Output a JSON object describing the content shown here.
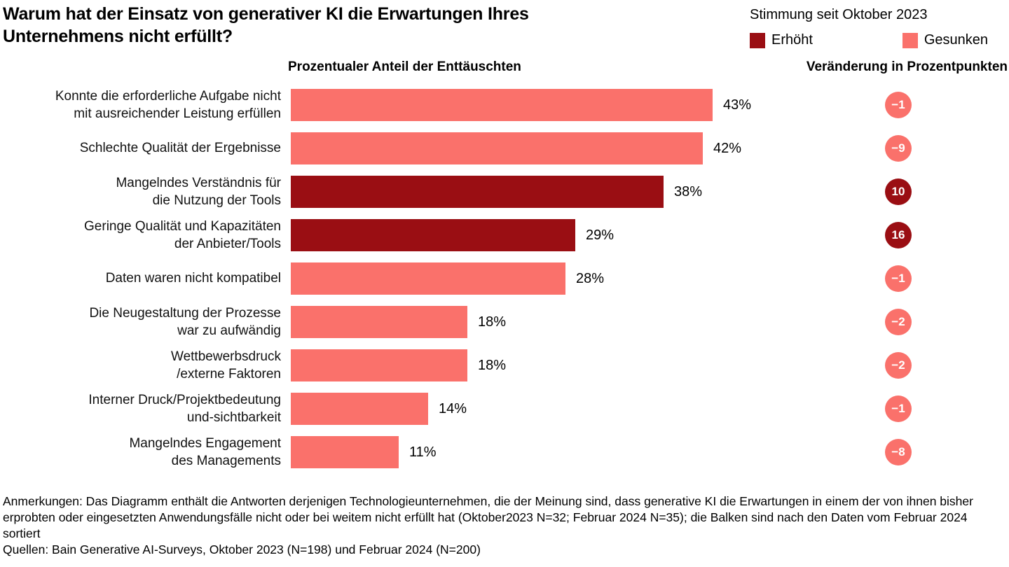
{
  "title": "Warum hat der Einsatz von generativer KI die Erwartungen Ihres Unternehmens nicht erfüllt?",
  "colors": {
    "erhoeht": "#9a0e13",
    "gesunken": "#fa716b"
  },
  "legend": {
    "title": "Stimmung seit Oktober 2023",
    "items": [
      {
        "label": "Erhöht",
        "sentiment": "erhoeht"
      },
      {
        "label": "Gesunken",
        "sentiment": "gesunken"
      }
    ]
  },
  "chart_data": {
    "type": "bar",
    "orientation": "horizontal",
    "value_axis_header": "Prozentualer Anteil der Enttäuschten",
    "change_column_header": "Veränderung in Prozentpunkten",
    "unit": "percent",
    "xlim": [
      0,
      45
    ],
    "categories": [
      "Konnte die erforderliche Aufgabe nicht mit ausreichender Leistung erfüllen",
      "Schlechte Qualität der Ergebnisse",
      "Mangelndes Verständnis für die Nutzung der Tools",
      "Geringe Qualität und Kapazitäten der Anbieter/Tools",
      "Daten waren nicht kompatibel",
      "Die Neugestaltung der Prozesse war zu aufwändig",
      "Wettbewerbsdruck /externe Faktoren",
      "Interner Druck/Projektbedeutung und-sichtbarkeit",
      "Mangelndes Engagement des Managements"
    ],
    "rows": [
      {
        "label_lines": [
          "Konnte die erforderliche Aufgabe nicht",
          "mit ausreichender Leistung erfüllen"
        ],
        "value": 43,
        "value_label": "43%",
        "sentiment": "gesunken",
        "change": "−1"
      },
      {
        "label_lines": [
          "Schlechte Qualität der Ergebnisse"
        ],
        "value": 42,
        "value_label": "42%",
        "sentiment": "gesunken",
        "change": "−9"
      },
      {
        "label_lines": [
          "Mangelndes Verständnis für",
          "die Nutzung der Tools"
        ],
        "value": 38,
        "value_label": "38%",
        "sentiment": "erhoeht",
        "change": "10"
      },
      {
        "label_lines": [
          "Geringe Qualität und Kapazitäten",
          "der Anbieter/Tools"
        ],
        "value": 29,
        "value_label": "29%",
        "sentiment": "erhoeht",
        "change": "16"
      },
      {
        "label_lines": [
          "Daten waren nicht kompatibel"
        ],
        "value": 28,
        "value_label": "28%",
        "sentiment": "gesunken",
        "change": "−1"
      },
      {
        "label_lines": [
          "Die Neugestaltung der Prozesse",
          "war zu aufwändig"
        ],
        "value": 18,
        "value_label": "18%",
        "sentiment": "gesunken",
        "change": "−2"
      },
      {
        "label_lines": [
          "Wettbewerbsdruck",
          "/externe Faktoren"
        ],
        "value": 18,
        "value_label": "18%",
        "sentiment": "gesunken",
        "change": "−2"
      },
      {
        "label_lines": [
          "Interner Druck/Projektbedeutung",
          "und-sichtbarkeit"
        ],
        "value": 14,
        "value_label": "14%",
        "sentiment": "gesunken",
        "change": "−1"
      },
      {
        "label_lines": [
          "Mangelndes Engagement",
          "des Managements"
        ],
        "value": 11,
        "value_label": "11%",
        "sentiment": "gesunken",
        "change": "−8"
      }
    ]
  },
  "footer": {
    "notes": "Anmerkungen: Das Diagramm enthält die Antworten derjenigen Technologieunternehmen, die der Meinung sind, dass generative KI die Erwartungen in einem der von ihnen bisher erprobten oder eingesetzten Anwendungsfälle nicht oder bei weitem nicht erfüllt hat (Oktober2023 N=32; Februar 2024 N=35); die Balken sind nach den Daten vom Februar 2024 sortiert",
    "sources": "Quellen: Bain Generative AI-Surveys, Oktober 2023 (N=198) und Februar 2024 (N=200)"
  }
}
